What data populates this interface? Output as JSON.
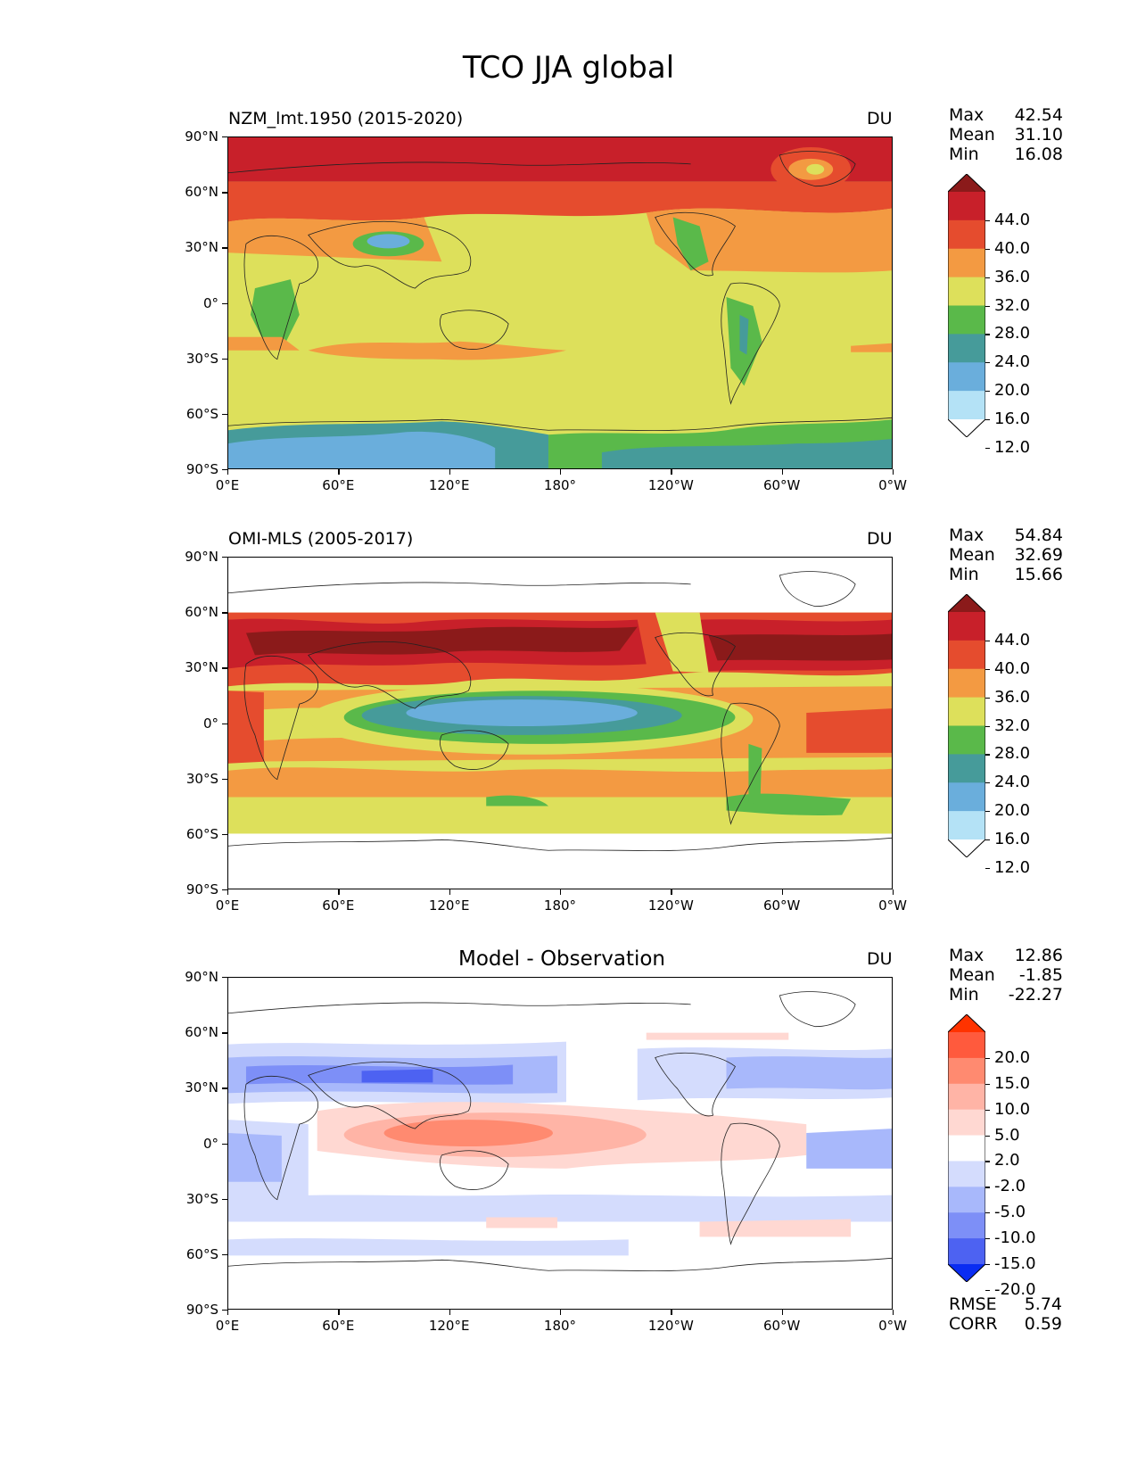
{
  "title": "TCO JJA global",
  "x_ticks": [
    "0°E",
    "60°E",
    "120°E",
    "180°",
    "120°W",
    "60°W",
    "0°W"
  ],
  "y_ticks": [
    "90°N",
    "60°N",
    "30°N",
    "0°",
    "30°S",
    "60°S",
    "90°S"
  ],
  "panels": [
    {
      "label": "NZM_lmt.1950 (2015-2020)",
      "unit": "DU",
      "stats": {
        "max_label": "Max",
        "max": "42.54",
        "mean_label": "Mean",
        "mean": "31.10",
        "min_label": "Min",
        "min": "16.08"
      },
      "colorbar": {
        "labels": [
          "44.0",
          "40.0",
          "36.0",
          "32.0",
          "28.0",
          "24.0",
          "20.0",
          "16.0",
          "12.0"
        ],
        "colors": [
          "#8b1a1a",
          "#c8202a",
          "#e54c2e",
          "#f39a42",
          "#dde05b",
          "#5ab94a",
          "#469b9a",
          "#6aaedc",
          "#b4e2f6",
          "#ffffff"
        ]
      }
    },
    {
      "label": "OMI-MLS (2005-2017)",
      "unit": "DU",
      "stats": {
        "max_label": "Max",
        "max": "54.84",
        "mean_label": "Mean",
        "mean": "32.69",
        "min_label": "Min",
        "min": "15.66"
      },
      "colorbar": {
        "labels": [
          "44.0",
          "40.0",
          "36.0",
          "32.0",
          "28.0",
          "24.0",
          "20.0",
          "16.0",
          "12.0"
        ],
        "colors": [
          "#8b1a1a",
          "#c8202a",
          "#e54c2e",
          "#f39a42",
          "#dde05b",
          "#5ab94a",
          "#469b9a",
          "#6aaedc",
          "#b4e2f6",
          "#ffffff"
        ]
      }
    },
    {
      "label": "Model - Observation",
      "unit": "DU",
      "stats": {
        "max_label": "Max",
        "max": "12.86",
        "mean_label": "Mean",
        "mean": "-1.85",
        "min_label": "Min",
        "min": "-22.27"
      },
      "colorbar": {
        "labels": [
          "20.0",
          "15.0",
          "10.0",
          "5.0",
          "2.0",
          "-2.0",
          "-5.0",
          "-10.0",
          "-15.0",
          "-20.0"
        ],
        "colors": [
          "#ff3300",
          "#ff5a3d",
          "#ff8a70",
          "#ffb4a6",
          "#ffd8d2",
          "#ffffff",
          "#d4dcfd",
          "#a8b8fb",
          "#7d8ff7",
          "#4d62f2",
          "#0a2cf2"
        ]
      },
      "metrics": {
        "rmse_label": "RMSE",
        "rmse": "5.74",
        "corr_label": "CORR",
        "corr": "0.59"
      }
    }
  ]
}
